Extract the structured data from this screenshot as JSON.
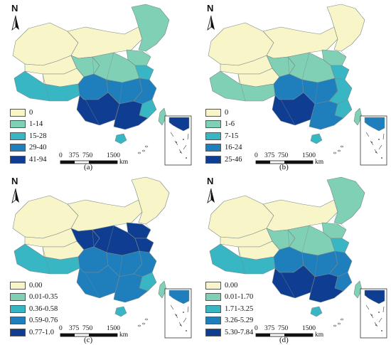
{
  "colors": {
    "c0": "#f8f5c8",
    "c1": "#7fd0b4",
    "c2": "#38b6c4",
    "c3": "#1f7fbd",
    "c4": "#0f3d92",
    "border": "#7a8a8a",
    "inset_border": "#333333"
  },
  "icons": {
    "north_arrow": "north-arrow-icon"
  },
  "scale_bar": {
    "ticks": [
      "0",
      "375",
      "750",
      "1500"
    ],
    "unit": "km"
  },
  "north_label": "N",
  "panels": [
    {
      "label": "(a)",
      "legend": [
        "0",
        "1-14",
        "15-28",
        "29-40",
        "41-94"
      ],
      "regions": {
        "northwest": 0,
        "west": 0,
        "north": 0,
        "northeast": 1,
        "tibet": 2,
        "qinghai": 0,
        "gansu": 1,
        "sichuan": 3,
        "central_north": 1,
        "central": 3,
        "east": 3,
        "southeast": 2,
        "southwest": 4,
        "south": 4,
        "hainan": 2,
        "taiwan": 1,
        "beijing_area": 1,
        "yellow_sea_coast": 2
      }
    },
    {
      "label": "(b)",
      "legend": [
        "0",
        "1-6",
        "7-15",
        "16-24",
        "25-46"
      ],
      "regions": {
        "northwest": 0,
        "west": 0,
        "north": 0,
        "northeast": 0,
        "tibet": 1,
        "qinghai": 0,
        "gansu": 1,
        "sichuan": 3,
        "central_north": 1,
        "central": 3,
        "east": 2,
        "southeast": 2,
        "southwest": 4,
        "south": 3,
        "hainan": 2,
        "taiwan": 1,
        "beijing_area": 1,
        "yellow_sea_coast": 2
      }
    },
    {
      "label": "(c)",
      "legend": [
        "0.00",
        "0.01-0.35",
        "0.36-0.58",
        "0.59-0.76",
        "0.77-1.0"
      ],
      "regions": {
        "northwest": 0,
        "west": 0,
        "north": 0,
        "northeast": 0,
        "tibet": 2,
        "qinghai": 0,
        "gansu": 4,
        "sichuan": 3,
        "central_north": 4,
        "central": 3,
        "east": 3,
        "southeast": 2,
        "southwest": 3,
        "south": 3,
        "hainan": 2,
        "taiwan": 1,
        "beijing_area": 4,
        "yellow_sea_coast": 4
      }
    },
    {
      "label": "(d)",
      "legend": [
        "0.00",
        "0.01-1.70",
        "1.71-3.25",
        "3.26-5.29",
        "5.30-7.84"
      ],
      "regions": {
        "northwest": 0,
        "west": 0,
        "north": 0,
        "northeast": 1,
        "tibet": 2,
        "qinghai": 0,
        "gansu": 1,
        "sichuan": 3,
        "central_north": 1,
        "central": 3,
        "east": 3,
        "southeast": 3,
        "southwest": 4,
        "south": 4,
        "hainan": 2,
        "taiwan": 1,
        "beijing_area": 1,
        "yellow_sea_coast": 2
      }
    }
  ]
}
